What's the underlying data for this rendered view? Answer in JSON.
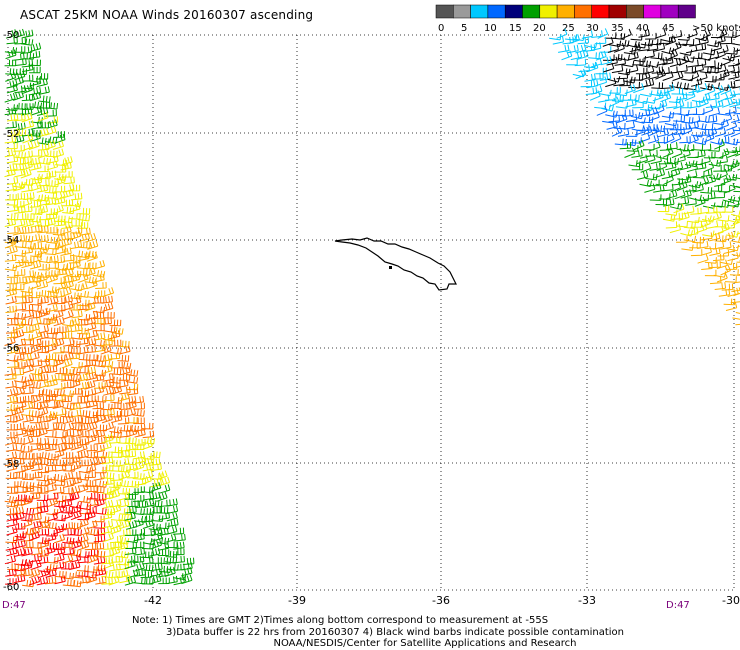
{
  "title": "ASCAT 25KM NOAA Winds 20160307 ascending",
  "legend": {
    "colors": [
      "#555555",
      "#9a9a9a",
      "#00c8ff",
      "#0068ff",
      "#00007a",
      "#00a000",
      "#f0f000",
      "#ffb000",
      "#ff7000",
      "#ff0000",
      "#a00000",
      "#7a4a28",
      "#e000e0",
      "#a000c0",
      "#60008a"
    ],
    "labels": [
      "0",
      "5",
      "10",
      "15",
      "20",
      "25",
      "30",
      "35",
      "40",
      "45",
      ">50 knots"
    ]
  },
  "lon_labels": [
    "-42",
    "-39",
    "-36",
    "-33",
    "-30"
  ],
  "lat_labels": [
    "-50",
    "-52",
    "-54",
    "-56",
    "-58",
    "-60"
  ],
  "time_labels": [
    "D:47",
    "D:47"
  ],
  "notes": [
    "Note: 1) Times are GMT 2)Times along bottom correspond to measurement at -55S",
    "3)Data buffer is 22 hrs from 20160307 4) Black wind barbs indicate possible contamination",
    "NOAA/NESDIS/Center for Satellite Applications and Research"
  ]
}
